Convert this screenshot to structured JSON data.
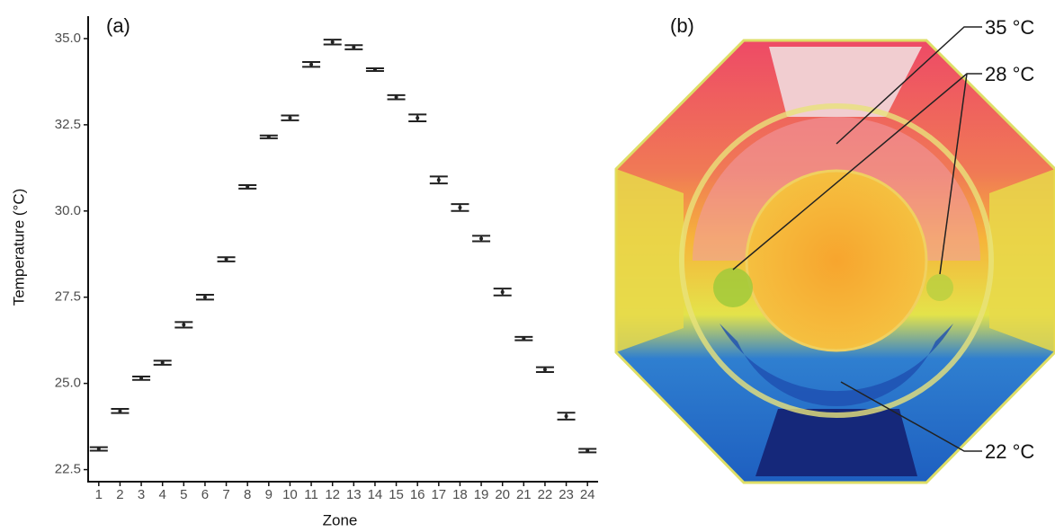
{
  "chart_data": {
    "type": "errorbar",
    "panel_label": "(a)",
    "x_label": "Zone",
    "y_label": "Temperature (°C)",
    "categories": [
      "1",
      "2",
      "3",
      "4",
      "5",
      "6",
      "7",
      "8",
      "9",
      "10",
      "11",
      "12",
      "13",
      "14",
      "15",
      "16",
      "17",
      "18",
      "19",
      "20",
      "21",
      "22",
      "23",
      "24"
    ],
    "values": [
      23.1,
      24.2,
      25.15,
      25.6,
      26.7,
      27.5,
      28.6,
      30.7,
      32.15,
      32.7,
      34.25,
      34.9,
      34.75,
      34.1,
      33.3,
      32.7,
      30.9,
      30.1,
      29.2,
      27.65,
      26.3,
      25.4,
      24.05,
      23.05
    ],
    "errors": [
      0.05,
      0.06,
      0.05,
      0.06,
      0.08,
      0.07,
      0.06,
      0.05,
      0.04,
      0.07,
      0.07,
      0.07,
      0.06,
      0.04,
      0.06,
      0.1,
      0.1,
      0.1,
      0.08,
      0.1,
      0.05,
      0.07,
      0.1,
      0.05
    ],
    "color": "#222222",
    "ylim": [
      22.15,
      35.65
    ],
    "yticks": [
      22.5,
      {
        "value": 25,
        "label": "25.0"
      },
      27.5,
      {
        "value": 30,
        "label": "30.0"
      },
      32.5,
      {
        "value": 35,
        "label": "35.0"
      }
    ]
  },
  "image": {
    "panel_label": "(b)",
    "annotations": [
      "35 °C",
      "28 °C",
      "22 °C"
    ]
  }
}
